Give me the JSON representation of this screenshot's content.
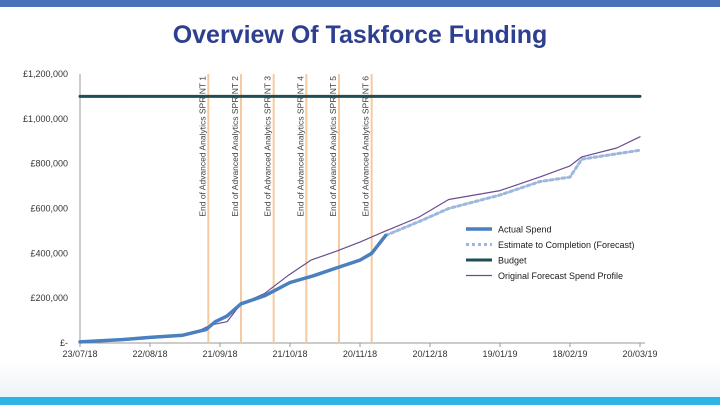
{
  "title": "Overview Of Taskforce Funding",
  "colors": {
    "top_bar": "#4a72b8",
    "bottom_bar": "#2fb4e6",
    "title": "#2f3f8f",
    "actual": "#4a7fc0",
    "estimate": "#9db8dc",
    "budget": "#1e4f55",
    "original": "#6a4c93",
    "vlines": "#f6c9a0"
  },
  "chart_data": {
    "type": "line",
    "title": "",
    "xlabel": "",
    "ylabel": "",
    "y_ticks": [
      "£1,200,000",
      "£1,000,000",
      "£800,000",
      "£600,000",
      "£400,000",
      "£200,000",
      "£-"
    ],
    "y_tick_values": [
      1200000,
      1000000,
      800000,
      600000,
      400000,
      200000,
      0
    ],
    "x_ticks": [
      "23/07/18",
      "22/08/18",
      "21/09/18",
      "21/10/18",
      "20/11/18",
      "20/12/18",
      "19/01/19",
      "18/02/19",
      "20/03/19"
    ],
    "ylim": [
      0,
      1200000
    ],
    "xlim": [
      "23/07/18",
      "20/03/19"
    ],
    "grid": false,
    "legend_position": "lower-right",
    "vertical_lines": [
      {
        "x": "16/09/18",
        "label": "End of Advanced Analytics SPRINT 1"
      },
      {
        "x": "30/09/18",
        "label": "End of Advanced Analytics SPRINT 2"
      },
      {
        "x": "14/10/18",
        "label": "End of Advanced Analytics SPRINT 3"
      },
      {
        "x": "28/10/18",
        "label": "End of Advanced Analytics SPRINT 4"
      },
      {
        "x": "11/11/18",
        "label": "End of Advanced Analytics SPRINT 5"
      },
      {
        "x": "25/11/18",
        "label": "End of Advanced Analytics SPRINT 6"
      }
    ],
    "series": [
      {
        "name": "Actual Spend",
        "style": "solid-thick",
        "points": [
          [
            "23/07/18",
            5000
          ],
          [
            "10/08/18",
            15000
          ],
          [
            "22/08/18",
            25000
          ],
          [
            "05/09/18",
            35000
          ],
          [
            "15/09/18",
            60000
          ],
          [
            "19/09/18",
            95000
          ],
          [
            "24/09/18",
            120000
          ],
          [
            "30/09/18",
            175000
          ],
          [
            "10/10/18",
            210000
          ],
          [
            "21/10/18",
            270000
          ],
          [
            "31/10/18",
            300000
          ],
          [
            "10/11/18",
            335000
          ],
          [
            "20/11/18",
            370000
          ],
          [
            "25/11/18",
            400000
          ],
          [
            "01/12/18",
            480000
          ]
        ]
      },
      {
        "name": "Estimate to Completion (Forecast)",
        "style": "dotted",
        "points": [
          [
            "01/12/18",
            480000
          ],
          [
            "15/12/18",
            540000
          ],
          [
            "28/12/18",
            600000
          ],
          [
            "19/01/19",
            660000
          ],
          [
            "05/02/19",
            720000
          ],
          [
            "18/02/19",
            740000
          ],
          [
            "23/02/19",
            820000
          ],
          [
            "20/03/19",
            860000
          ]
        ]
      },
      {
        "name": "Budget",
        "style": "solid-thick",
        "points": [
          [
            "23/07/18",
            1100000
          ],
          [
            "20/03/19",
            1100000
          ]
        ]
      },
      {
        "name": "Original Forecast Spend Profile",
        "style": "solid-thin",
        "points": [
          [
            "23/07/18",
            5000
          ],
          [
            "10/08/18",
            15000
          ],
          [
            "22/08/18",
            25000
          ],
          [
            "05/09/18",
            35000
          ],
          [
            "12/09/18",
            55000
          ],
          [
            "17/09/18",
            80000
          ],
          [
            "24/09/18",
            95000
          ],
          [
            "30/09/18",
            175000
          ],
          [
            "10/10/18",
            220000
          ],
          [
            "20/10/18",
            300000
          ],
          [
            "30/10/18",
            370000
          ],
          [
            "10/11/18",
            410000
          ],
          [
            "20/11/18",
            450000
          ],
          [
            "01/12/18",
            500000
          ],
          [
            "15/12/18",
            560000
          ],
          [
            "28/12/18",
            640000
          ],
          [
            "19/01/19",
            680000
          ],
          [
            "05/02/19",
            740000
          ],
          [
            "18/02/19",
            790000
          ],
          [
            "23/02/19",
            830000
          ],
          [
            "10/03/19",
            870000
          ],
          [
            "20/03/19",
            920000
          ]
        ]
      }
    ]
  }
}
